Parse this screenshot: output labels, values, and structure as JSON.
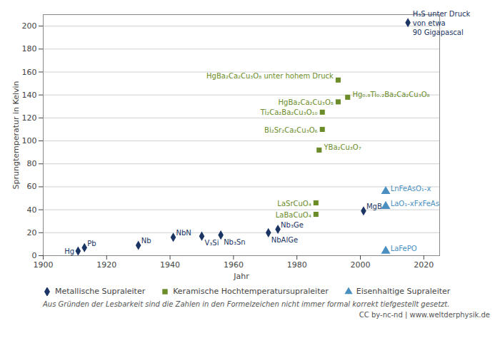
{
  "chart_data": {
    "type": "scatter",
    "xlabel": "Jahr",
    "ylabel": "Sprungtemperatur in Kelvin",
    "xlim": [
      1900,
      2025
    ],
    "ylim": [
      0,
      210
    ],
    "xticks": [
      1900,
      1920,
      1940,
      1960,
      1980,
      2000,
      2020
    ],
    "yticks": [
      0,
      20,
      40,
      60,
      80,
      100,
      120,
      140,
      160,
      180,
      200
    ],
    "grid": true,
    "legend": "bottom",
    "series": [
      {
        "name": "Metallische Supraleiter",
        "color": "#1a3464",
        "marker": "diamond",
        "x": [
          1911,
          1913,
          1930,
          1941,
          1950,
          1956,
          1971,
          1974,
          2001,
          2015
        ],
        "values": [
          4,
          7,
          9,
          16,
          17,
          18,
          20,
          23,
          39,
          203
        ],
        "labels": [
          "Hg",
          "Pb",
          "Nb",
          "NbN",
          "V₃Si",
          "Nb₃Sn",
          "NbAlGe",
          "Nb₃Ge",
          "MgB",
          "H₃S unter Druck\nvon etwa\n90 Gigapascal"
        ]
      },
      {
        "name": "Keramische Hochtemperatursupraleiter",
        "color": "#6b8c28",
        "marker": "square",
        "x": [
          1986,
          1986,
          1987,
          1988,
          1988,
          1993,
          1993,
          1996
        ],
        "values": [
          36,
          46,
          92,
          110,
          125,
          134,
          153,
          138
        ],
        "labels": [
          "LaBaCuO₄",
          "LaSrCuO₄",
          "YBa₂Cu₃O₇",
          "Bi₂Sr₂Ca₂Cu₃O₆",
          "Ti₂Ca₂Ba₂Cu₃O₁₀",
          "HgBa₂Ca₂Cu₃O₈",
          "HgBa₂Ca₂Cu₃O₈ unter hohem Druck",
          "Hg₀.₈Ti₀.₂Ba₂Ca₂Cu₃O₈"
        ]
      },
      {
        "name": "Eisenhaltige Supraleiter",
        "color": "#4a8fc0",
        "marker": "triangle",
        "x": [
          2008,
          2008,
          2008
        ],
        "values": [
          4,
          56,
          43
        ],
        "labels": [
          "LaFePO",
          "LnFeAsO₁-x",
          "LaO₁-xFxFeAs"
        ]
      }
    ],
    "footnote": "Aus Gründen der Lesbarkeit sind die Zahlen in den Formelzeichen nicht immer formal korrekt tiefgestellt gesetzt.",
    "copyright": "CC by-nc-nd | www.weltderphysik.de"
  }
}
